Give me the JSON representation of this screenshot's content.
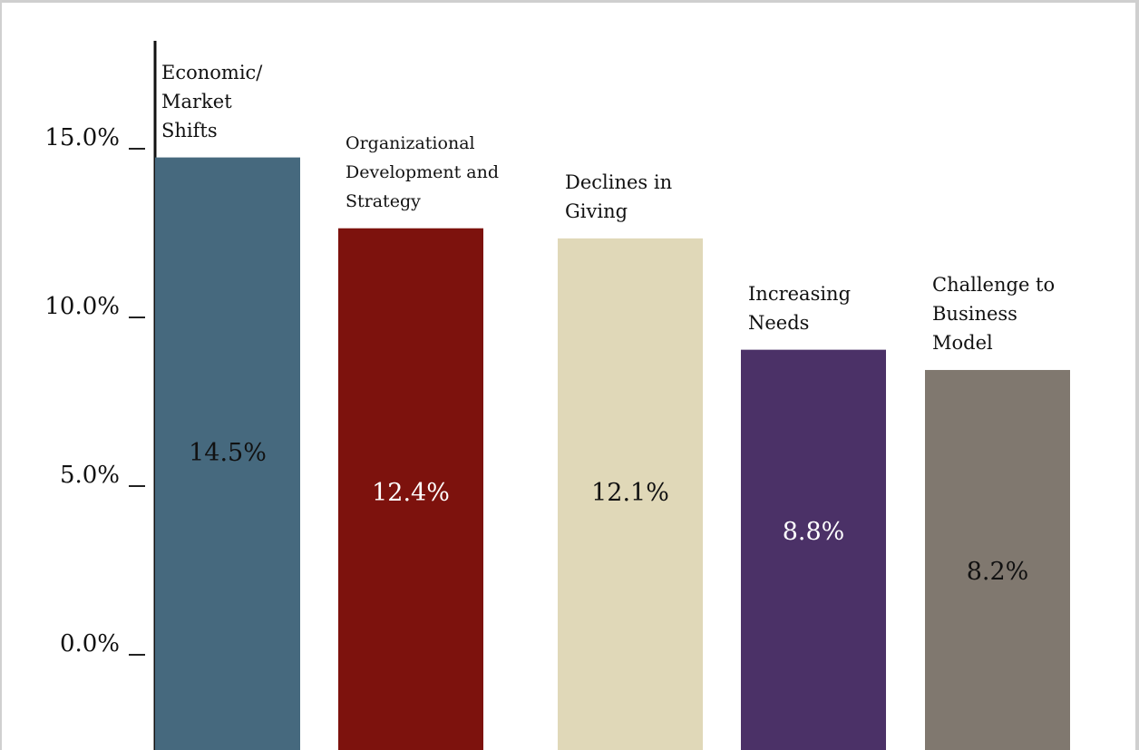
{
  "chart_data": {
    "type": "bar",
    "title": "",
    "xlabel": "",
    "ylabel": "",
    "ylim": [
      0,
      16.5
    ],
    "yticks": [
      "0.0%",
      "5.0%",
      "10.0%",
      "15.0%"
    ],
    "grid": false,
    "legend": "none",
    "categories": [
      "Economic/\nMarket\nShifts",
      "Organizational\nDevelopment and\nStrategy",
      "Declines in\nGiving",
      "Increasing\nNeeds",
      "Challenge to\nBusiness\nModel"
    ],
    "values": [
      14.5,
      12.4,
      12.1,
      8.8,
      8.2
    ],
    "value_labels": [
      "14.5%",
      "12.4%",
      "12.1%",
      "8.8%",
      "8.2%"
    ],
    "colors": [
      "#46697e",
      "#7d120d",
      "#e0d8b8",
      "#4b3167",
      "#80786f"
    ],
    "value_label_colors": [
      "#111111",
      "#ffffff",
      "#111111",
      "#ffffff",
      "#111111"
    ]
  }
}
